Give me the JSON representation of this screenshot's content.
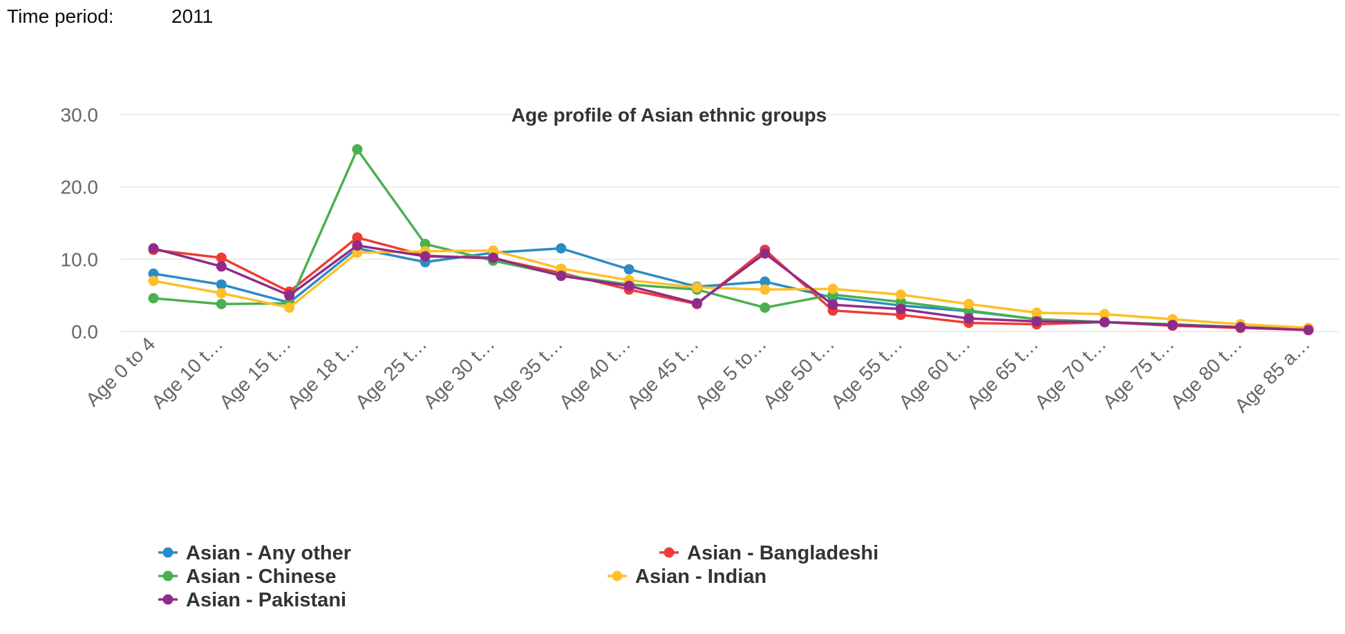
{
  "time_period": {
    "label": "Time period:",
    "value": "2011"
  },
  "chart_data": {
    "type": "line",
    "title": "Age profile of Asian ethnic groups",
    "xlabel": "",
    "ylabel": "",
    "ylim": [
      0,
      30
    ],
    "y_ticks": [
      "0.0",
      "10.0",
      "20.0",
      "30.0"
    ],
    "grid": true,
    "legend_position": "bottom",
    "categories": [
      "Age 0 to 4",
      "Age 10 t…",
      "Age 15 t…",
      "Age 18 t…",
      "Age 25 t…",
      "Age 30 t…",
      "Age 35 t…",
      "Age 40 t…",
      "Age 45 t…",
      "Age 5 to…",
      "Age 50 t…",
      "Age 55 t…",
      "Age 60 t…",
      "Age 65 t…",
      "Age 70 t…",
      "Age 75 t…",
      "Age 80 t…",
      "Age 85 a…"
    ],
    "series": [
      {
        "name": "Asian - Any other",
        "color": "#2b8cc4",
        "values": [
          8.0,
          6.5,
          4.0,
          11.5,
          9.6,
          10.9,
          11.5,
          8.6,
          6.2,
          6.9,
          4.7,
          3.6,
          2.8,
          1.7,
          1.3,
          1.0,
          0.6,
          0.3
        ]
      },
      {
        "name": "Asian - Bangladeshi",
        "color": "#ee3c35",
        "values": [
          11.3,
          10.2,
          5.5,
          13.0,
          10.5,
          10.1,
          8.1,
          5.8,
          3.8,
          11.3,
          2.9,
          2.3,
          1.2,
          1.0,
          1.3,
          0.8,
          0.5,
          0.2
        ]
      },
      {
        "name": "Asian - Chinese",
        "color": "#4caf50",
        "values": [
          4.6,
          3.8,
          3.9,
          25.2,
          12.1,
          9.8,
          7.8,
          6.5,
          5.8,
          3.3,
          5.1,
          4.1,
          2.9,
          1.7,
          1.3,
          1.0,
          0.6,
          0.3
        ]
      },
      {
        "name": "Asian - Indian",
        "color": "#ffbf27",
        "values": [
          7.0,
          5.3,
          3.3,
          10.9,
          11.1,
          11.2,
          8.7,
          7.1,
          6.1,
          5.8,
          5.9,
          5.1,
          3.8,
          2.6,
          2.4,
          1.7,
          1.0,
          0.5
        ]
      },
      {
        "name": "Asian - Pakistani",
        "color": "#912b88",
        "values": [
          11.5,
          9.0,
          5.0,
          11.9,
          10.4,
          10.2,
          7.7,
          6.3,
          3.9,
          10.8,
          3.7,
          3.1,
          1.8,
          1.4,
          1.3,
          0.9,
          0.6,
          0.2
        ]
      }
    ]
  }
}
